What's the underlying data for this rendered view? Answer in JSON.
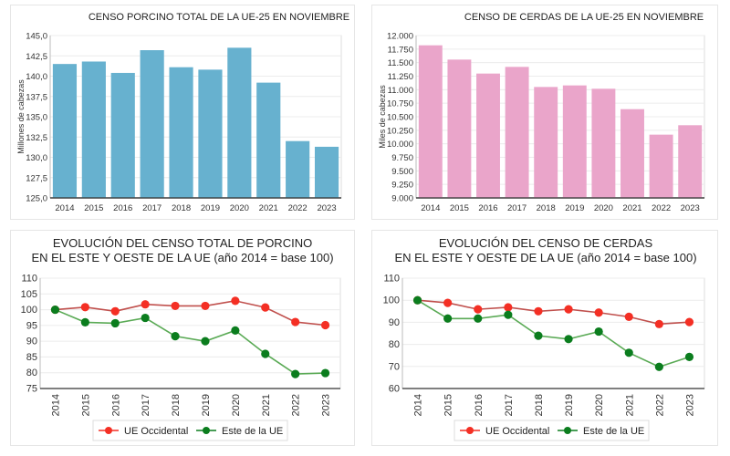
{
  "colors": {
    "bar_total": "#67b1cf",
    "bar_sows": "#eaa5ca",
    "west": "#f42f24",
    "west_line": "#c0504d",
    "east": "#0b7d1e",
    "east_line": "#5aaa55",
    "grid": "#ececec",
    "axis": "#333333"
  },
  "chart_data": [
    {
      "type": "bar",
      "title": "CENSO PORCINO TOTAL DE LA UE-25 EN NOVIEMBRE",
      "xlabel": "",
      "ylabel": "Millones de cabezas",
      "categories": [
        "2014",
        "2015",
        "2016",
        "2017",
        "2018",
        "2019",
        "2020",
        "2021",
        "2022",
        "2023"
      ],
      "values": [
        141.5,
        141.8,
        140.4,
        143.2,
        141.1,
        140.8,
        143.5,
        139.2,
        132.0,
        131.3
      ],
      "ylim": [
        125.0,
        145.0
      ],
      "yticks": [
        "125,0",
        "127,5",
        "130,0",
        "132,5",
        "135,0",
        "137,5",
        "140,0",
        "142,5",
        "145,0"
      ],
      "grid": true,
      "legend": "none"
    },
    {
      "type": "bar",
      "title": "CENSO DE CERDAS DE LA UE-25 EN NOVIEMBRE",
      "xlabel": "",
      "ylabel": "Miles de cabezas",
      "categories": [
        "2014",
        "2015",
        "2016",
        "2017",
        "2018",
        "2019",
        "2020",
        "2021",
        "2022",
        "2023"
      ],
      "values": [
        11820,
        11556,
        11298,
        11421,
        11050,
        11079,
        11017,
        10640,
        10169,
        10343
      ],
      "ylim": [
        9000,
        12000
      ],
      "yticks": [
        "9.000",
        "9.250",
        "9.500",
        "9.750",
        "10.000",
        "10.250",
        "10.500",
        "10.750",
        "11.000",
        "11.250",
        "11.500",
        "11.750",
        "12.000"
      ],
      "grid": true,
      "legend": "none"
    },
    {
      "type": "line",
      "title": "EVOLUCIÓN DEL CENSO TOTAL DE PORCINO",
      "subtitle": "EN EL ESTE Y OESTE DE LA UE (año 2014 = base 100)",
      "xlabel": "",
      "ylabel": "",
      "categories": [
        "2014",
        "2015",
        "2016",
        "2017",
        "2018",
        "2019",
        "2020",
        "2021",
        "2022",
        "2023"
      ],
      "series": [
        {
          "name": "UE Occidental",
          "values": [
            100.0,
            100.8,
            99.5,
            101.7,
            101.2,
            101.2,
            102.8,
            100.7,
            96.1,
            95.1
          ]
        },
        {
          "name": "Este de la UE",
          "values": [
            100.0,
            96.0,
            95.7,
            97.4,
            91.6,
            90.0,
            93.4,
            86.0,
            79.6,
            79.9
          ]
        }
      ],
      "ylim": [
        75,
        110
      ],
      "yticks": [
        "75",
        "80",
        "85",
        "90",
        "95",
        "100",
        "105",
        "110"
      ],
      "grid": true,
      "legend": "bottom"
    },
    {
      "type": "line",
      "title": "EVOLUCIÓN DEL CENSO DE CERDAS",
      "subtitle": "EN EL ESTE Y OESTE DE LA UE (año 2014 = base 100)",
      "xlabel": "",
      "ylabel": "",
      "categories": [
        "2014",
        "2015",
        "2016",
        "2017",
        "2018",
        "2019",
        "2020",
        "2021",
        "2022",
        "2023"
      ],
      "series": [
        {
          "name": "UE Occidental",
          "values": [
            100.0,
            98.8,
            95.9,
            96.8,
            95.0,
            95.9,
            94.4,
            92.5,
            89.2,
            90.1
          ]
        },
        {
          "name": "Este de la UE",
          "values": [
            100.0,
            91.7,
            91.7,
            93.4,
            83.9,
            82.4,
            85.8,
            76.2,
            69.8,
            74.3
          ]
        }
      ],
      "ylim": [
        60,
        110
      ],
      "yticks": [
        "60",
        "70",
        "80",
        "90",
        "100",
        "110"
      ],
      "grid": true,
      "legend": "bottom"
    }
  ]
}
